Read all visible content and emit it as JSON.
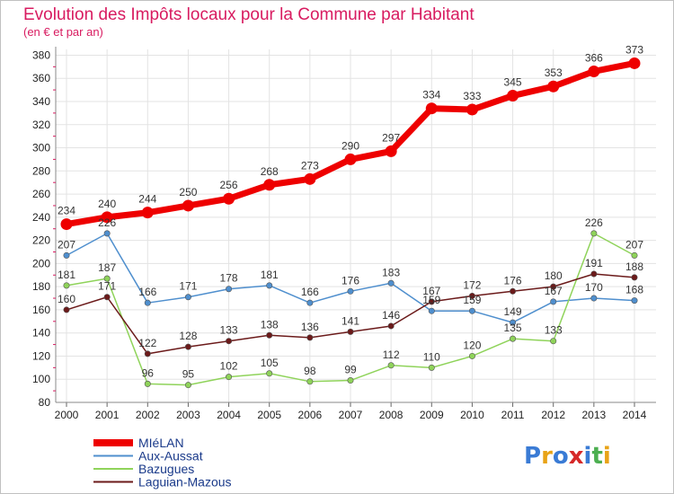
{
  "chart_data": {
    "type": "line",
    "title": "Evolution des Impôts locaux pour la Commune par Habitant",
    "subtitle": "(en € et par an)",
    "x": [
      "2000",
      "2001",
      "2002",
      "2003",
      "2004",
      "2005",
      "2006",
      "2007",
      "2008",
      "2009",
      "2010",
      "2011",
      "2012",
      "2013",
      "2014"
    ],
    "yticks": [
      80,
      100,
      120,
      140,
      160,
      180,
      200,
      220,
      240,
      260,
      280,
      300,
      320,
      340,
      360,
      380
    ],
    "ylim": [
      80,
      385
    ],
    "grid": true,
    "legend_position": "bottom-left",
    "series": [
      {
        "name": "MIéLAN",
        "color": "#ee0000",
        "emphasis": true,
        "values": [
          234,
          240,
          244,
          250,
          256,
          268,
          273,
          290,
          297,
          334,
          333,
          345,
          353,
          366,
          373
        ]
      },
      {
        "name": "Aux-Aussat",
        "color": "#4f8fce",
        "values": [
          207,
          226,
          166,
          171,
          178,
          181,
          166,
          176,
          183,
          159,
          159,
          149,
          167,
          170,
          168
        ]
      },
      {
        "name": "Bazugues",
        "color": "#8fd35a",
        "values": [
          181,
          187,
          96,
          95,
          102,
          105,
          98,
          99,
          112,
          110,
          120,
          135,
          133,
          226,
          207
        ]
      },
      {
        "name": "Laguian-Mazous",
        "color": "#6b1a1a",
        "values": [
          160,
          171,
          122,
          128,
          133,
          138,
          136,
          141,
          146,
          167,
          172,
          176,
          180,
          191,
          188
        ]
      }
    ]
  },
  "logo": {
    "text": "Proxiti",
    "colors": [
      "#3a7bd5",
      "#e8a317",
      "#3a7bd5",
      "#d62828",
      "#3a7bd5",
      "#4caf50",
      "#e8a317"
    ]
  }
}
